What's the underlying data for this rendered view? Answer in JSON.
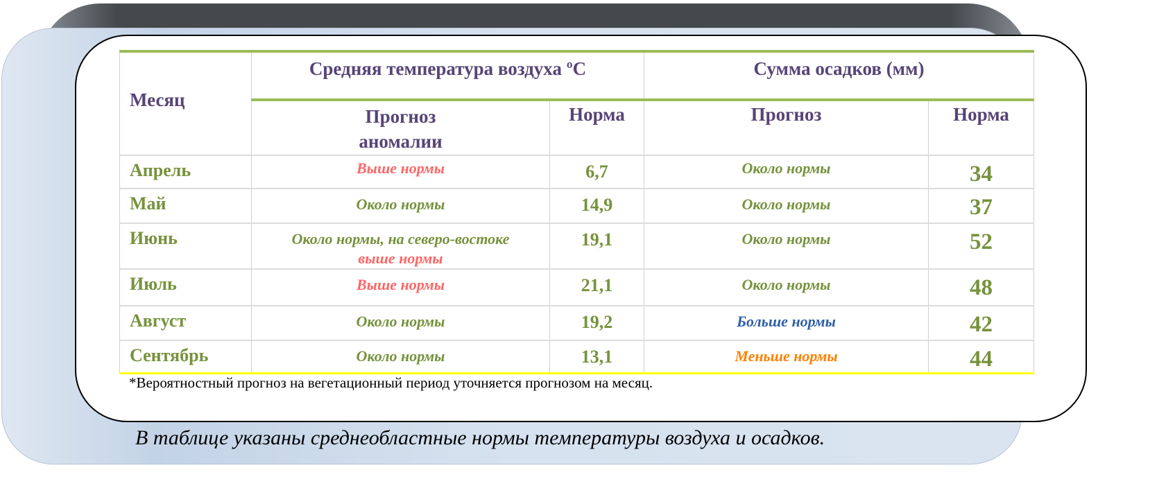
{
  "colors": {
    "header": "#574476",
    "green": "#76923c",
    "above": "#ff6666",
    "more": "#2f5fa8",
    "less": "#ff8000",
    "rule": "#9bbb59",
    "bottom_rule": "#ffff00"
  },
  "table": {
    "col_month": "Месяц",
    "group_temp": "Средняя температура воздуха ºC",
    "group_precip": "Сумма осадков (мм)",
    "sub_forecast_anomaly": "Прогноз аномалии",
    "sub_norm1": "Норма",
    "sub_forecast": "Прогноз",
    "sub_norm2": "Норма",
    "rows": [
      {
        "month": "Апрель",
        "temp_forecast": "Выше нормы",
        "temp_forecast2": "",
        "temp_norm": "6,7",
        "precip_forecast": "Около нормы",
        "precip_norm": "34"
      },
      {
        "month": "Май",
        "temp_forecast": "Около нормы",
        "temp_forecast2": "",
        "temp_norm": "14,9",
        "precip_forecast": "Около нормы",
        "precip_norm": "37"
      },
      {
        "month": "Июнь",
        "temp_forecast": "Около нормы, на северо-востоке",
        "temp_forecast2": "выше нормы",
        "temp_norm": "19,1",
        "precip_forecast": "Около нормы",
        "precip_norm": "52"
      },
      {
        "month": "Июль",
        "temp_forecast": "Выше нормы",
        "temp_forecast2": "",
        "temp_norm": "21,1",
        "precip_forecast": "Около нормы",
        "precip_norm": "48"
      },
      {
        "month": "Август",
        "temp_forecast": "Около нормы",
        "temp_forecast2": "",
        "temp_norm": "19,2",
        "precip_forecast": "Больше нормы",
        "precip_norm": "42"
      },
      {
        "month": "Сентябрь",
        "temp_forecast": "Около нормы",
        "temp_forecast2": "",
        "temp_norm": "13,1",
        "precip_forecast": "Меньше нормы",
        "precip_norm": "44"
      }
    ]
  },
  "footnote": "*Вероятностный прогноз на вегетационный период уточняется прогнозом на месяц.",
  "caption": "В таблице указаны среднеобластные нормы температуры воздуха и осадков."
}
